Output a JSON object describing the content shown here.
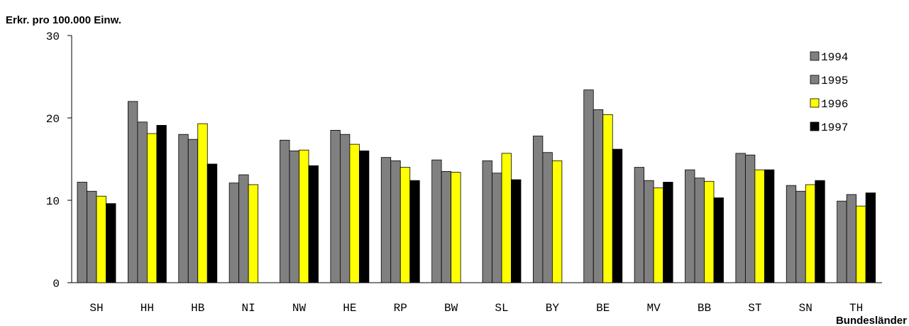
{
  "chart_data": {
    "type": "bar",
    "title": "",
    "ylabel": "Erkr. pro 100.000 Einw.",
    "xlabel": "Bundesländer",
    "ylim": [
      0,
      30
    ],
    "yticks": [
      0,
      10,
      20,
      30
    ],
    "grid": false,
    "legend_position": "top-right",
    "categories": [
      "SH",
      "HH",
      "HB",
      "NI",
      "NW",
      "HE",
      "RP",
      "BW",
      "SL",
      "BY",
      "BE",
      "MV",
      "BB",
      "ST",
      "SN",
      "TH"
    ],
    "series": [
      {
        "name": "1994",
        "color": "#808080",
        "values": [
          12.2,
          22.0,
          18.0,
          12.1,
          17.3,
          18.5,
          15.2,
          14.9,
          14.8,
          17.8,
          23.4,
          14.0,
          13.7,
          15.7,
          11.8,
          9.9
        ]
      },
      {
        "name": "1995",
        "color": "#808080",
        "values": [
          11.1,
          19.5,
          17.4,
          13.1,
          16.0,
          18.0,
          14.8,
          13.5,
          13.3,
          15.8,
          21.0,
          12.4,
          12.7,
          15.5,
          11.1,
          10.7
        ]
      },
      {
        "name": "1996",
        "color": "#ffff00",
        "values": [
          10.5,
          18.1,
          19.3,
          11.9,
          16.1,
          16.8,
          14.0,
          13.4,
          15.7,
          14.8,
          20.4,
          11.5,
          12.3,
          13.7,
          11.9,
          9.3
        ]
      },
      {
        "name": "1997",
        "color": "#000000",
        "values": [
          9.6,
          19.1,
          14.4,
          null,
          14.2,
          16.0,
          12.4,
          null,
          12.5,
          null,
          16.2,
          12.2,
          10.3,
          13.7,
          12.4,
          10.9
        ]
      }
    ]
  }
}
